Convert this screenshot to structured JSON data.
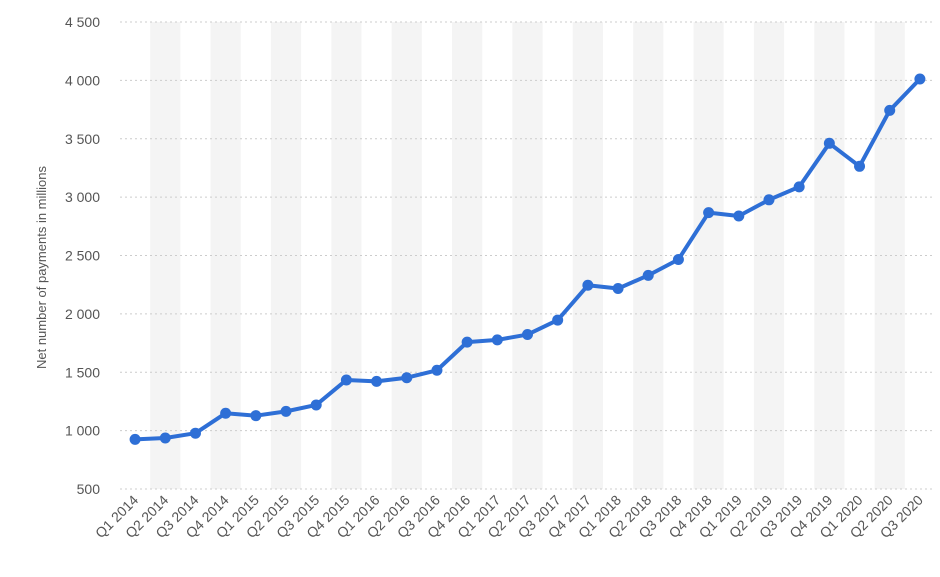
{
  "chart_data": {
    "type": "line",
    "ylabel": "Net number of payments in millions",
    "xlabel": "",
    "ylim": [
      500,
      4500
    ],
    "y_ticks": [
      4500,
      4000,
      3500,
      3000,
      2500,
      2000,
      1500,
      1000,
      500
    ],
    "y_tick_labels": [
      "4 500",
      "4 000",
      "3 500",
      "3 000",
      "2 500",
      "2 000",
      "1 500",
      "1 000",
      "500"
    ],
    "categories": [
      "Q1 2014",
      "Q2 2014",
      "Q3 2014",
      "Q4 2014",
      "Q1 2015",
      "Q2 2015",
      "Q3 2015",
      "Q4 2015",
      "Q1 2016",
      "Q2 2016",
      "Q3 2016",
      "Q4 2016",
      "Q1 2017",
      "Q2 2017",
      "Q3 2017",
      "Q4 2017",
      "Q1 2018",
      "Q2 2018",
      "Q3 2018",
      "Q4 2018",
      "Q1 2019",
      "Q2 2019",
      "Q3 2019",
      "Q4 2019",
      "Q1 2020",
      "Q2 2020",
      "Q3 2020"
    ],
    "series": [
      {
        "values": [
          925,
          937,
          978,
          1149,
          1128,
          1165,
          1220,
          1434,
          1422,
          1453,
          1517,
          1758,
          1777,
          1823,
          1947,
          2245,
          2217,
          2330,
          2466,
          2867,
          2838,
          2977,
          3088,
          3461,
          3264,
          3743,
          4012
        ]
      }
    ],
    "colors": {
      "line": "#2e6fd6",
      "band": "#f4f4f4",
      "grid": "#cccccc",
      "text": "#555555"
    },
    "grid": true,
    "alternating_column_bands": true,
    "legend": "none"
  }
}
